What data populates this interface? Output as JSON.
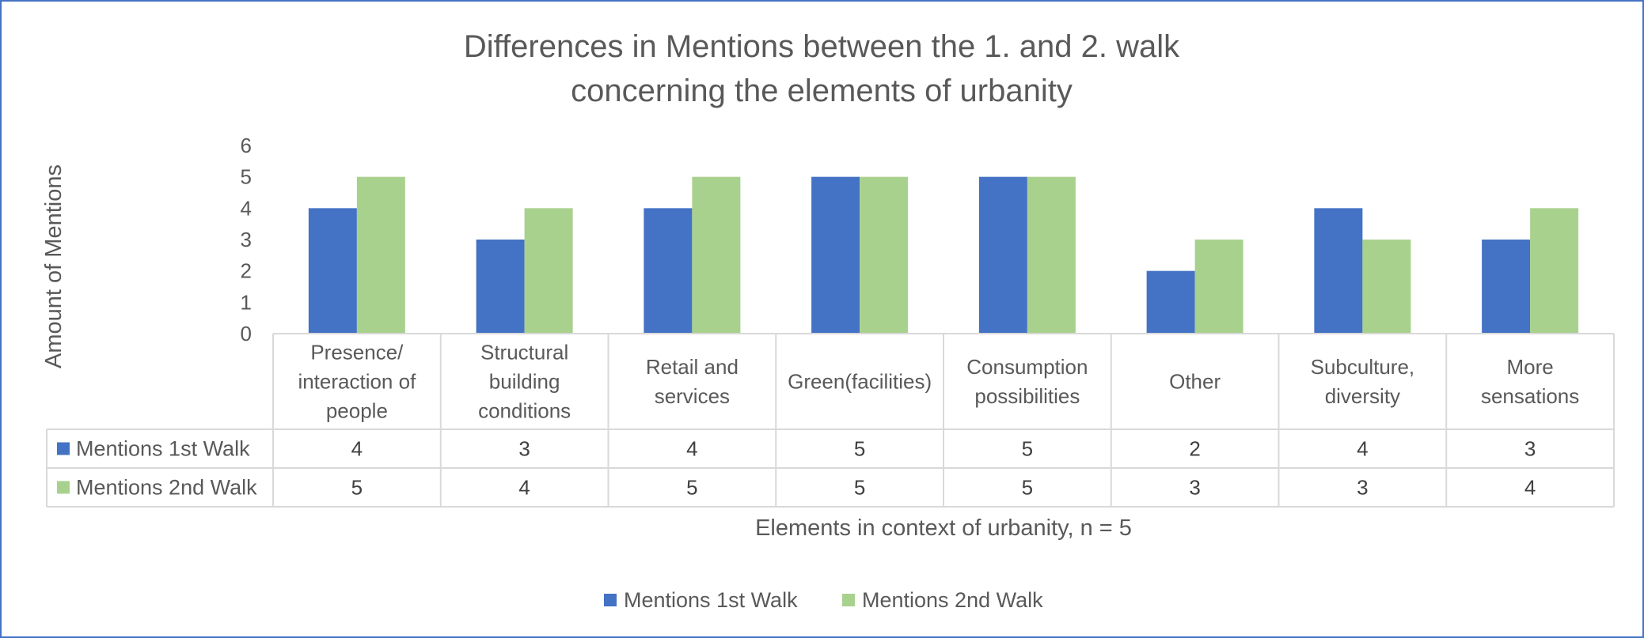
{
  "chart_data": {
    "type": "bar",
    "title_lines": [
      "Differences in Mentions between the 1. and 2. walk",
      "concerning the elements of urbanity"
    ],
    "ylabel": "Amount of Mentions",
    "xlabel": "Elements in context of urbanity, n = 5",
    "ylim": [
      0,
      6
    ],
    "yticks": [
      0,
      1,
      2,
      3,
      4,
      5,
      6
    ],
    "categories": [
      [
        "Presence/",
        "interaction of",
        "people"
      ],
      [
        "Structural",
        "building",
        "conditions"
      ],
      [
        "Retail and",
        "services"
      ],
      [
        "Green(facilities)"
      ],
      [
        "Consumption",
        "possibilities"
      ],
      [
        "Other"
      ],
      [
        "Subculture,",
        "diversity"
      ],
      [
        "More",
        "sensations"
      ]
    ],
    "series": [
      {
        "name": "Mentions 1st Walk",
        "color": "#4472c4",
        "values": [
          4,
          3,
          4,
          5,
          5,
          2,
          4,
          3
        ]
      },
      {
        "name": "Mentions 2nd Walk",
        "color": "#a9d18e",
        "values": [
          5,
          4,
          5,
          5,
          5,
          3,
          3,
          4
        ]
      }
    ],
    "grid": false,
    "data_table": true,
    "legend_position": "bottom"
  }
}
